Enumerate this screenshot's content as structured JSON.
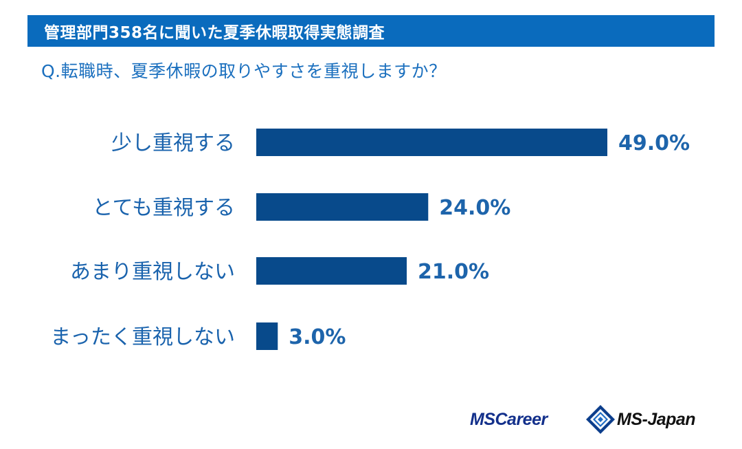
{
  "header": {
    "title": "管理部門358名に聞いた夏季休暇取得実態調査"
  },
  "question": "Q.転職時、夏季休暇の取りやすさを重視しますか？",
  "chart_data": {
    "type": "bar",
    "orientation": "horizontal",
    "categories": [
      "少し重視する",
      "とても重視する",
      "あまり重視しない",
      "まったく重視しない"
    ],
    "values": [
      49.0,
      24.0,
      21.0,
      3.0
    ],
    "value_labels": [
      "49.0%",
      "24.0%",
      "21.0%",
      "3.0%"
    ],
    "unit": "%",
    "xlim": [
      0,
      49.0
    ],
    "grid": false,
    "legend": "none"
  },
  "logos": {
    "ms_career": "MSCareer",
    "ms_japan": "MS-Japan"
  },
  "colors": {
    "header": "#0a6bbd",
    "bar": "#084a8b",
    "text": "#1a63ad"
  }
}
